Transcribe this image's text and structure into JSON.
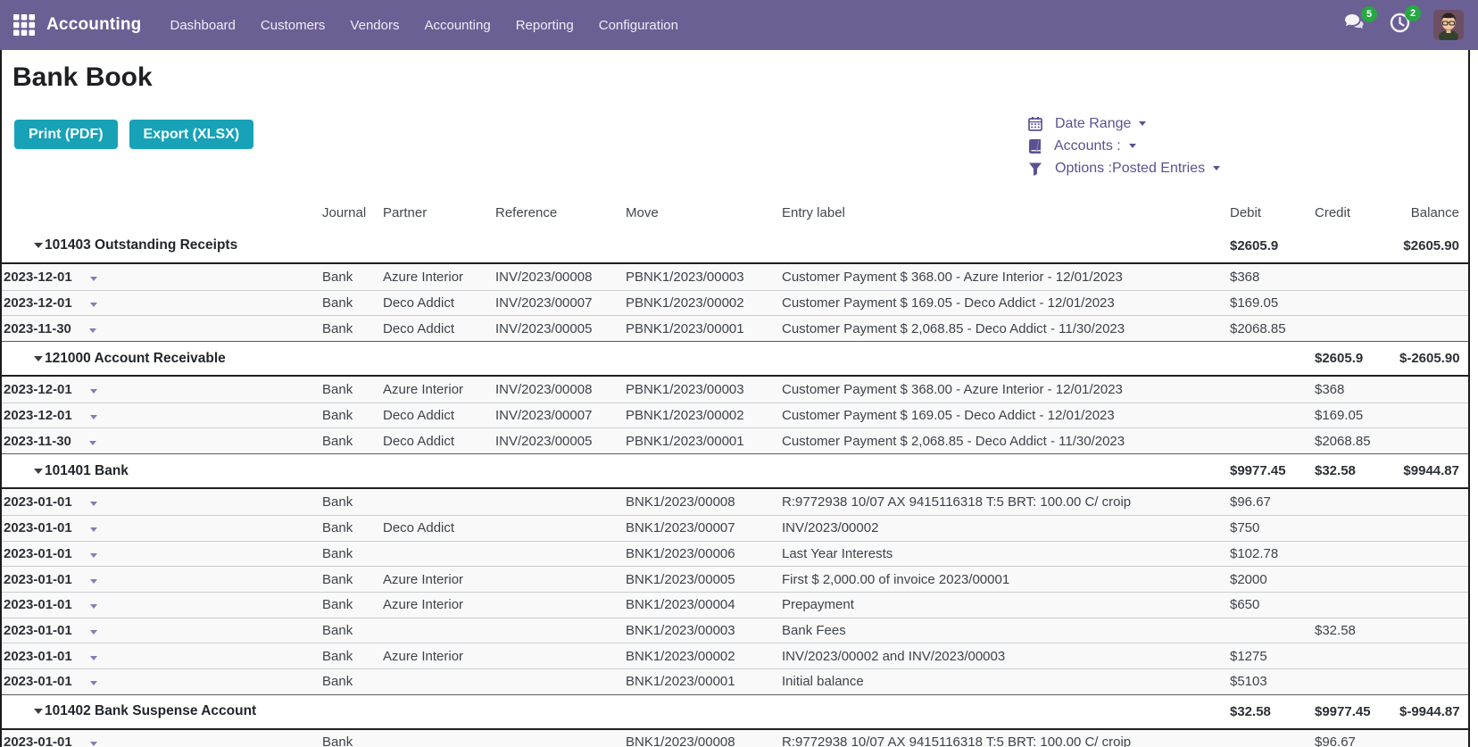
{
  "navbar": {
    "brand": "Accounting",
    "menu_items": [
      "Dashboard",
      "Customers",
      "Vendors",
      "Accounting",
      "Reporting",
      "Configuration"
    ],
    "messages_badge": "5",
    "activities_badge": "2"
  },
  "page": {
    "title": "Bank Book",
    "buttons": {
      "print": "Print (PDF)",
      "export": "Export (XLSX)"
    },
    "filters": [
      {
        "icon": "calendar-icon",
        "label": "Date Range"
      },
      {
        "icon": "book-icon",
        "label": "Accounts :"
      },
      {
        "icon": "funnel-icon",
        "label": "Options :Posted Entries"
      }
    ]
  },
  "table": {
    "headers": [
      "Journal",
      "Partner",
      "Reference",
      "Move",
      "Entry label",
      "Debit",
      "Credit",
      "Balance"
    ],
    "groups": [
      {
        "account": "101403 Outstanding Receipts",
        "totals": {
          "debit": "$2605.9",
          "credit": "",
          "balance": "$2605.90"
        },
        "rows": [
          {
            "date": "2023-12-01",
            "journal": "Bank",
            "partner": "Azure Interior",
            "reference": "INV/2023/00008",
            "move": "PBNK1/2023/00003",
            "label": "Customer Payment $ 368.00 - Azure Interior - 12/01/2023",
            "debit": "$368",
            "credit": ""
          },
          {
            "date": "2023-12-01",
            "journal": "Bank",
            "partner": "Deco Addict",
            "reference": "INV/2023/00007",
            "move": "PBNK1/2023/00002",
            "label": "Customer Payment $ 169.05 - Deco Addict - 12/01/2023",
            "debit": "$169.05",
            "credit": ""
          },
          {
            "date": "2023-11-30",
            "journal": "Bank",
            "partner": "Deco Addict",
            "reference": "INV/2023/00005",
            "move": "PBNK1/2023/00001",
            "label": "Customer Payment $ 2,068.85 - Deco Addict - 11/30/2023",
            "debit": "$2068.85",
            "credit": ""
          }
        ]
      },
      {
        "account": "121000 Account Receivable",
        "totals": {
          "debit": "",
          "credit": "$2605.9",
          "balance": "$-2605.90"
        },
        "rows": [
          {
            "date": "2023-12-01",
            "journal": "Bank",
            "partner": "Azure Interior",
            "reference": "INV/2023/00008",
            "move": "PBNK1/2023/00003",
            "label": "Customer Payment $ 368.00 - Azure Interior - 12/01/2023",
            "debit": "",
            "credit": "$368"
          },
          {
            "date": "2023-12-01",
            "journal": "Bank",
            "partner": "Deco Addict",
            "reference": "INV/2023/00007",
            "move": "PBNK1/2023/00002",
            "label": "Customer Payment $ 169.05 - Deco Addict - 12/01/2023",
            "debit": "",
            "credit": "$169.05"
          },
          {
            "date": "2023-11-30",
            "journal": "Bank",
            "partner": "Deco Addict",
            "reference": "INV/2023/00005",
            "move": "PBNK1/2023/00001",
            "label": "Customer Payment $ 2,068.85 - Deco Addict - 11/30/2023",
            "debit": "",
            "credit": "$2068.85"
          }
        ]
      },
      {
        "account": "101401 Bank",
        "totals": {
          "debit": "$9977.45",
          "credit": "$32.58",
          "balance": "$9944.87"
        },
        "rows": [
          {
            "date": "2023-01-01",
            "journal": "Bank",
            "partner": "",
            "reference": "",
            "move": "BNK1/2023/00008",
            "label": "R:9772938 10/07 AX 9415116318 T:5 BRT: 100.00 C/ croip",
            "debit": "$96.67",
            "credit": ""
          },
          {
            "date": "2023-01-01",
            "journal": "Bank",
            "partner": "Deco Addict",
            "reference": "",
            "move": "BNK1/2023/00007",
            "label": "INV/2023/00002",
            "debit": "$750",
            "credit": ""
          },
          {
            "date": "2023-01-01",
            "journal": "Bank",
            "partner": "",
            "reference": "",
            "move": "BNK1/2023/00006",
            "label": "Last Year Interests",
            "debit": "$102.78",
            "credit": ""
          },
          {
            "date": "2023-01-01",
            "journal": "Bank",
            "partner": "Azure Interior",
            "reference": "",
            "move": "BNK1/2023/00005",
            "label": "First $ 2,000.00 of invoice 2023/00001",
            "debit": "$2000",
            "credit": ""
          },
          {
            "date": "2023-01-01",
            "journal": "Bank",
            "partner": "Azure Interior",
            "reference": "",
            "move": "BNK1/2023/00004",
            "label": "Prepayment",
            "debit": "$650",
            "credit": ""
          },
          {
            "date": "2023-01-01",
            "journal": "Bank",
            "partner": "",
            "reference": "",
            "move": "BNK1/2023/00003",
            "label": "Bank Fees",
            "debit": "",
            "credit": "$32.58"
          },
          {
            "date": "2023-01-01",
            "journal": "Bank",
            "partner": "Azure Interior",
            "reference": "",
            "move": "BNK1/2023/00002",
            "label": "INV/2023/00002 and INV/2023/00003",
            "debit": "$1275",
            "credit": ""
          },
          {
            "date": "2023-01-01",
            "journal": "Bank",
            "partner": "",
            "reference": "",
            "move": "BNK1/2023/00001",
            "label": "Initial balance",
            "debit": "$5103",
            "credit": ""
          }
        ]
      },
      {
        "account": "101402 Bank Suspense Account",
        "totals": {
          "debit": "$32.58",
          "credit": "$9977.45",
          "balance": "$-9944.87"
        },
        "rows": [
          {
            "date": "2023-01-01",
            "journal": "Bank",
            "partner": "",
            "reference": "",
            "move": "BNK1/2023/00008",
            "label": "R:9772938 10/07 AX 9415116318 T:5 BRT: 100.00 C/ croip",
            "debit": "",
            "credit": "$96.67"
          }
        ]
      }
    ]
  },
  "colors": {
    "navbar_purple": "#6b6094",
    "filter_purple": "#5b5191",
    "button_teal": "#17a2b8",
    "badge_green": "#28a745"
  }
}
